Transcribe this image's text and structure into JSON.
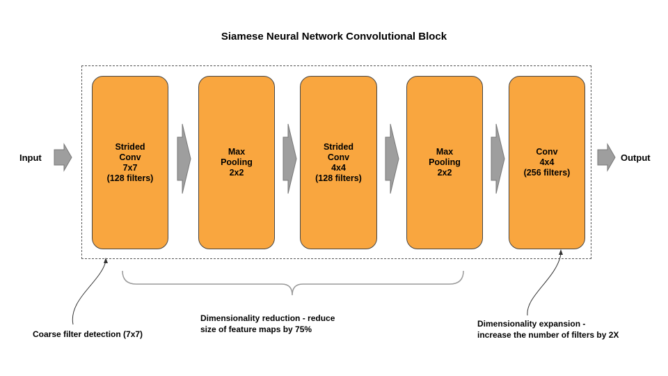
{
  "title": "Siamese Neural Network Convolutional Block",
  "input_label": "Input",
  "output_label": "Output",
  "blocks": [
    {
      "lines": [
        "Strided",
        "Conv",
        "7x7",
        "(128 filters)"
      ]
    },
    {
      "lines": [
        "Max",
        "Pooling",
        "2x2"
      ]
    },
    {
      "lines": [
        "Strided",
        "Conv",
        "4x4",
        "(128 filters)"
      ]
    },
    {
      "lines": [
        "Max",
        "Pooling",
        "2x2"
      ]
    },
    {
      "lines": [
        "Conv",
        "4x4",
        "(256 filters)"
      ]
    }
  ],
  "annotations": {
    "coarse": "Coarse filter detection (7x7)",
    "reduction": [
      "Dimensionality reduction - reduce",
      "size of feature maps by 75%"
    ],
    "expansion": [
      "Dimensionality expansion -",
      "increase the number of filters by 2X"
    ]
  },
  "colors": {
    "block_fill": "#f9a63f",
    "arrow_fill": "#9e9e9e"
  }
}
